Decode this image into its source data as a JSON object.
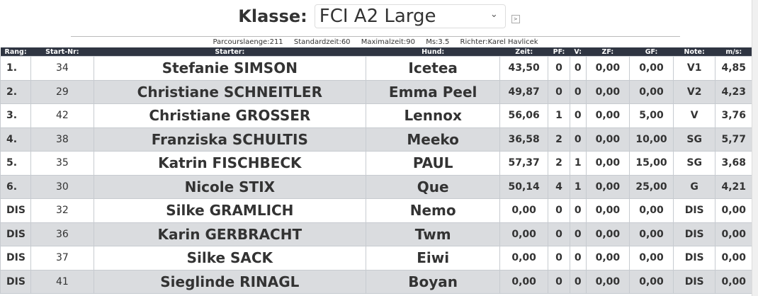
{
  "header": {
    "label": "Klasse:",
    "selected_class": "FCI A2 Large",
    "info": {
      "parcours": "Parcourslaenge:211",
      "standard": "Standardzeit:60",
      "maximal": "Maximalzeit:90",
      "ms": "Ms:3.5",
      "richter": "Richter:Karel Havlicek"
    }
  },
  "table": {
    "columns": [
      "Rang:",
      "Start-Nr:",
      "Starter:",
      "Hund:",
      "Zeit:",
      "PF:",
      "V:",
      "ZF:",
      "GF:",
      "Note:",
      "m/s:"
    ],
    "rows": [
      {
        "rang": "1.",
        "start": "34",
        "starter": "Stefanie SIMSON",
        "hund": "Icetea",
        "zeit": "43,50",
        "pf": "0",
        "v": "0",
        "zf": "0,00",
        "gf": "0,00",
        "note": "V1",
        "ms": "4,85"
      },
      {
        "rang": "2.",
        "start": "29",
        "starter": "Christiane SCHNEITLER",
        "hund": "Emma Peel",
        "zeit": "49,87",
        "pf": "0",
        "v": "0",
        "zf": "0,00",
        "gf": "0,00",
        "note": "V2",
        "ms": "4,23"
      },
      {
        "rang": "3.",
        "start": "42",
        "starter": "Christiane GROSSER",
        "hund": "Lennox",
        "zeit": "56,06",
        "pf": "1",
        "v": "0",
        "zf": "0,00",
        "gf": "5,00",
        "note": "V",
        "ms": "3,76"
      },
      {
        "rang": "4.",
        "start": "38",
        "starter": "Franziska SCHULTIS",
        "hund": "Meeko",
        "zeit": "36,58",
        "pf": "2",
        "v": "0",
        "zf": "0,00",
        "gf": "10,00",
        "note": "SG",
        "ms": "5,77"
      },
      {
        "rang": "5.",
        "start": "35",
        "starter": "Katrin FISCHBECK",
        "hund": "PAUL",
        "zeit": "57,37",
        "pf": "2",
        "v": "1",
        "zf": "0,00",
        "gf": "15,00",
        "note": "SG",
        "ms": "3,68"
      },
      {
        "rang": "6.",
        "start": "30",
        "starter": "Nicole STIX",
        "hund": "Que",
        "zeit": "50,14",
        "pf": "4",
        "v": "1",
        "zf": "0,00",
        "gf": "25,00",
        "note": "G",
        "ms": "4,21"
      },
      {
        "rang": "DIS",
        "start": "32",
        "starter": "Silke GRAMLICH",
        "hund": "Nemo",
        "zeit": "0,00",
        "pf": "0",
        "v": "0",
        "zf": "0,00",
        "gf": "0,00",
        "note": "DIS",
        "ms": "0,00"
      },
      {
        "rang": "DIS",
        "start": "36",
        "starter": "Karin GERBRACHT",
        "hund": "Twm",
        "zeit": "0,00",
        "pf": "0",
        "v": "0",
        "zf": "0,00",
        "gf": "0,00",
        "note": "DIS",
        "ms": "0,00"
      },
      {
        "rang": "DIS",
        "start": "37",
        "starter": "Silke SACK",
        "hund": "Eiwi",
        "zeit": "0,00",
        "pf": "0",
        "v": "0",
        "zf": "0,00",
        "gf": "0,00",
        "note": "DIS",
        "ms": "0,00"
      },
      {
        "rang": "DIS",
        "start": "41",
        "starter": "Sieglinde RINAGL",
        "hund": "Boyan",
        "zeit": "0,00",
        "pf": "0",
        "v": "0",
        "zf": "0,00",
        "gf": "0,00",
        "note": "DIS",
        "ms": "0,00"
      }
    ]
  }
}
